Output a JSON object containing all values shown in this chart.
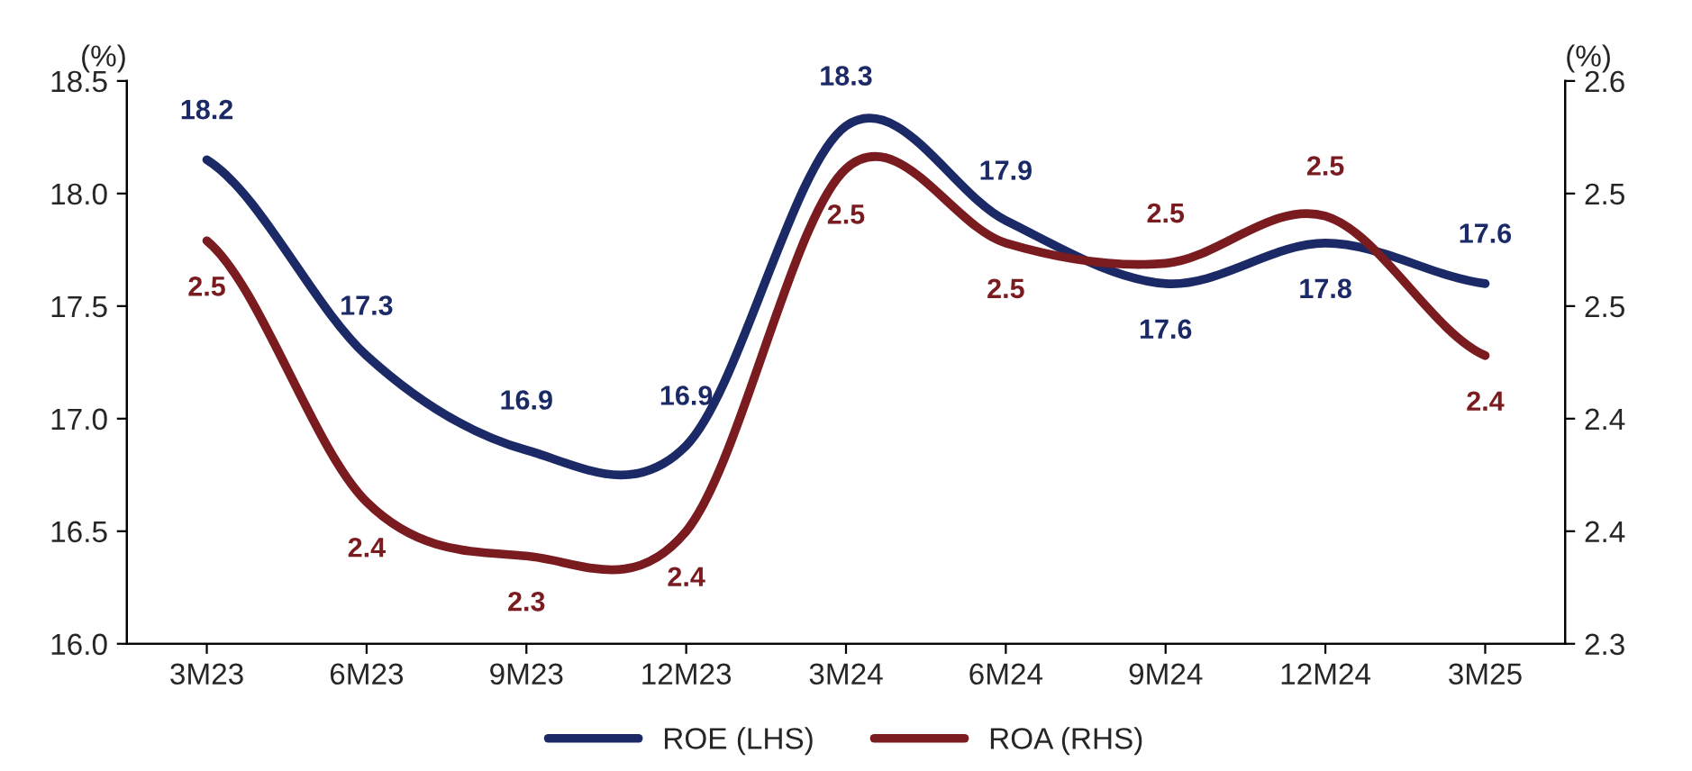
{
  "chart_data": {
    "type": "line",
    "ylabel": "(%)",
    "y2label": "(%)",
    "categories": [
      "3M23",
      "6M23",
      "9M23",
      "12M23",
      "3M24",
      "6M24",
      "9M24",
      "12M24",
      "3M25"
    ],
    "series": [
      {
        "name": "ROE (LHS)",
        "color": "#1b2a66",
        "values": [
          18.15,
          17.28,
          16.86,
          16.88,
          18.3,
          17.88,
          17.6,
          17.78,
          17.6
        ],
        "value_labels": [
          "18.2",
          "17.3",
          "16.9",
          "16.9",
          "18.3",
          "17.9",
          "17.6",
          "17.8",
          "17.6"
        ]
      },
      {
        "name": "ROA (RHS)",
        "color": "#7a1b1f",
        "axis": "y2",
        "values": [
          2.479,
          2.363,
          2.339,
          2.35,
          2.511,
          2.478,
          2.469,
          2.49,
          2.428
        ],
        "value_labels": [
          "2.5",
          "2.4",
          "2.3",
          "2.4",
          "2.5",
          "2.5",
          "2.5",
          "2.5",
          "2.4"
        ]
      }
    ],
    "ylim": [
      16.0,
      18.5
    ],
    "yticks": [
      {
        "value": 16.0,
        "label": "16.0"
      },
      {
        "value": 16.5,
        "label": "16.5"
      },
      {
        "value": 17.0,
        "label": "17.0"
      },
      {
        "value": 17.5,
        "label": "17.5"
      },
      {
        "value": 18.0,
        "label": "18.0"
      },
      {
        "value": 18.5,
        "label": "18.5"
      }
    ],
    "y2lim": [
      2.3,
      2.55
    ],
    "y2ticks": [
      {
        "value": 2.3,
        "label": "2.3"
      },
      {
        "value": 2.35,
        "label": "2.4"
      },
      {
        "value": 2.4,
        "label": "2.4"
      },
      {
        "value": 2.45,
        "label": "2.5"
      },
      {
        "value": 2.5,
        "label": "2.5"
      },
      {
        "value": 2.55,
        "label": "2.6"
      }
    ],
    "grid": false,
    "legend": "bottom",
    "marker": "none",
    "line_style": "solid"
  }
}
